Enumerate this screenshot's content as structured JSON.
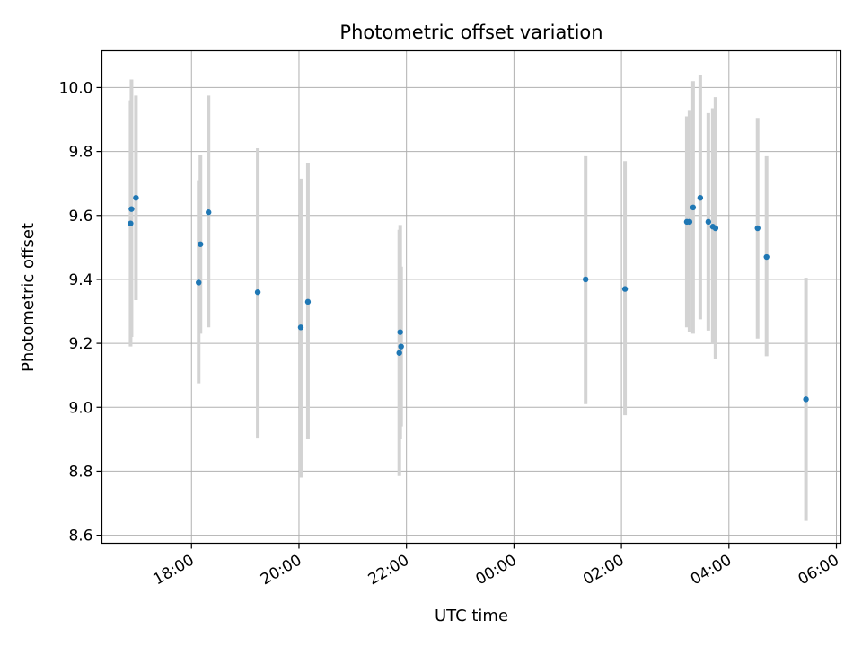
{
  "chart_data": {
    "type": "scatter",
    "title": "Photometric offset variation",
    "xlabel": "UTC time",
    "ylabel": "Photometric offset",
    "x_axis": {
      "kind": "time",
      "range": [
        "16:20",
        "06:05"
      ],
      "ticks": [
        {
          "time": "18:00",
          "label": "18:00"
        },
        {
          "time": "20:00",
          "label": "20:00"
        },
        {
          "time": "22:00",
          "label": "22:00"
        },
        {
          "time": "00:00",
          "label": "00:00"
        },
        {
          "time": "02:00",
          "label": "02:00"
        },
        {
          "time": "04:00",
          "label": "04:00"
        },
        {
          "time": "06:00",
          "label": "06:00"
        }
      ]
    },
    "ylim": [
      8.575,
      10.115
    ],
    "y_ticks": [
      "8.6",
      "8.8",
      "9.0",
      "9.2",
      "9.4",
      "9.6",
      "9.8",
      "10.0"
    ],
    "grid": true,
    "marker_color": "#1f77b4",
    "errorbar_color": "#d3d3d3",
    "points": [
      {
        "time": "16:52",
        "y": 9.575,
        "ylo": 9.19,
        "yhi": 9.96
      },
      {
        "time": "16:53",
        "y": 9.62,
        "ylo": 9.22,
        "yhi": 10.025
      },
      {
        "time": "16:58",
        "y": 9.655,
        "ylo": 9.335,
        "yhi": 9.975
      },
      {
        "time": "18:08",
        "y": 9.39,
        "ylo": 9.075,
        "yhi": 9.71
      },
      {
        "time": "18:10",
        "y": 9.51,
        "ylo": 9.23,
        "yhi": 9.79
      },
      {
        "time": "18:19",
        "y": 9.61,
        "ylo": 9.25,
        "yhi": 9.975
      },
      {
        "time": "19:14",
        "y": 9.36,
        "ylo": 8.905,
        "yhi": 9.81
      },
      {
        "time": "20:02",
        "y": 9.25,
        "ylo": 8.78,
        "yhi": 9.715
      },
      {
        "time": "20:10",
        "y": 9.33,
        "ylo": 8.9,
        "yhi": 9.765
      },
      {
        "time": "21:52",
        "y": 9.17,
        "ylo": 8.785,
        "yhi": 9.555
      },
      {
        "time": "21:53",
        "y": 9.235,
        "ylo": 8.9,
        "yhi": 9.57
      },
      {
        "time": "21:54",
        "y": 9.19,
        "ylo": 8.94,
        "yhi": 9.44
      },
      {
        "time": "01:20",
        "y": 9.4,
        "ylo": 9.01,
        "yhi": 9.785
      },
      {
        "time": "02:04",
        "y": 9.37,
        "ylo": 8.975,
        "yhi": 9.77
      },
      {
        "time": "03:13",
        "y": 9.58,
        "ylo": 9.25,
        "yhi": 9.91
      },
      {
        "time": "03:16",
        "y": 9.58,
        "ylo": 9.235,
        "yhi": 9.93
      },
      {
        "time": "03:20",
        "y": 9.625,
        "ylo": 9.23,
        "yhi": 10.02
      },
      {
        "time": "03:28",
        "y": 9.655,
        "ylo": 9.275,
        "yhi": 10.04
      },
      {
        "time": "03:37",
        "y": 9.58,
        "ylo": 9.24,
        "yhi": 9.92
      },
      {
        "time": "03:42",
        "y": 9.565,
        "ylo": 9.2,
        "yhi": 9.935
      },
      {
        "time": "03:45",
        "y": 9.56,
        "ylo": 9.15,
        "yhi": 9.97
      },
      {
        "time": "04:32",
        "y": 9.56,
        "ylo": 9.215,
        "yhi": 9.905
      },
      {
        "time": "04:42",
        "y": 9.47,
        "ylo": 9.16,
        "yhi": 9.785
      },
      {
        "time": "05:26",
        "y": 9.025,
        "ylo": 8.645,
        "yhi": 9.405
      }
    ]
  }
}
